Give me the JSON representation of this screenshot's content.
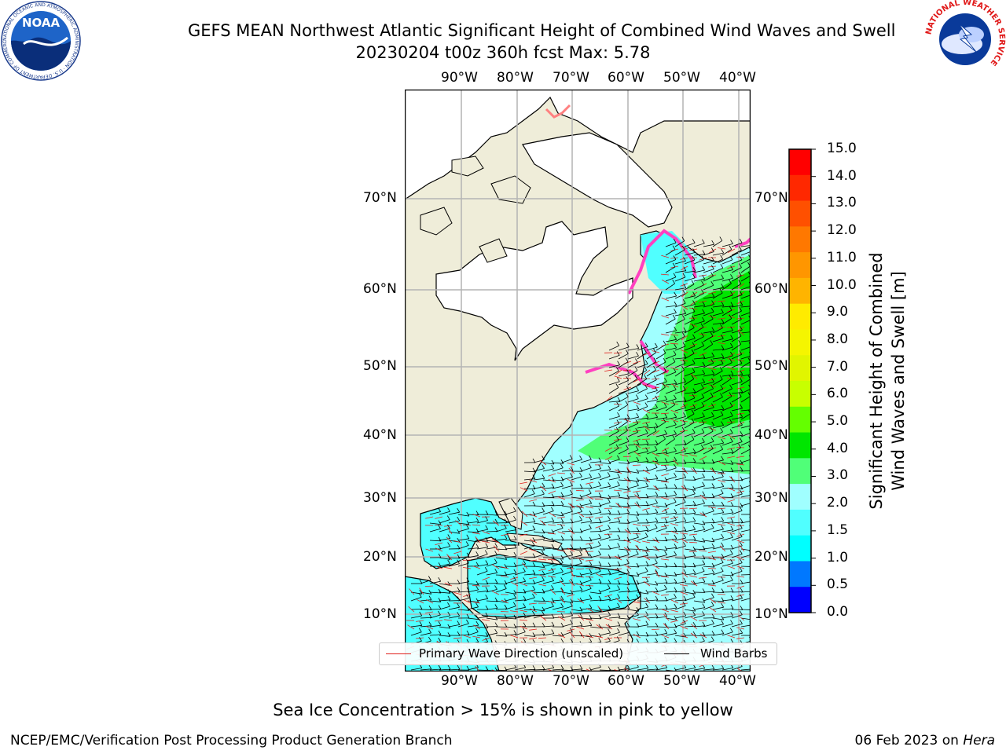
{
  "title": {
    "line1": "GEFS MEAN Northwest Atlantic Significant Height of Combined Wind Waves and Swell",
    "line2": "20230204 t00z 360h fcst   Max: 5.78"
  },
  "map": {
    "lon_labels": [
      "90°W",
      "80°W",
      "70°W",
      "60°W",
      "50°W",
      "40°W"
    ],
    "lat_labels": [
      "70°N",
      "60°N",
      "50°N",
      "40°N",
      "30°N",
      "20°N",
      "10°N"
    ],
    "colors": {
      "land": "#efedd9",
      "ice_free_land": "#ffffff",
      "grid": "#b4b4b4",
      "coast": "#000000",
      "wave_arrow": "#e0201c",
      "wind_barb": "#000000"
    }
  },
  "colorbar": {
    "label_line1": "Significant Height of Combined",
    "label_line2": "Wind Waves and Swell [m]",
    "ticks": [
      "15.0",
      "14.0",
      "13.0",
      "12.0",
      "11.0",
      "10.0",
      "9.0",
      "8.0",
      "7.0",
      "6.0",
      "5.0",
      "4.0",
      "3.0",
      "2.0",
      "1.5",
      "1.0",
      "0.5",
      "0.0"
    ],
    "colors_top_to_bottom": [
      "#ff0000",
      "#ff2800",
      "#ff5000",
      "#ff7800",
      "#ff9600",
      "#ffb400",
      "#ffeb00",
      "#f5f500",
      "#e1f500",
      "#c8ff00",
      "#64ff00",
      "#00e600",
      "#50ff78",
      "#a0ffff",
      "#50ffff",
      "#00ffff",
      "#0078ff",
      "#0000ff"
    ]
  },
  "legend": {
    "wave_label": "Primary Wave Direction (unscaled)",
    "wind_label": "Wind Barbs"
  },
  "caption": "Sea Ice Concentration > 15% is shown in pink to yellow",
  "footer": {
    "left": "NCEP/EMC/Verification Post Processing Product Generation Branch",
    "right_date": "06 Feb 2023 on ",
    "right_host": "Hera"
  },
  "logos": {
    "noaa_text": "NOAA",
    "noaa_ring_text": "NATIONAL OCEANIC AND ATMOSPHERIC ADMINISTRATION · U.S. DEPARTMENT OF COMMERCE",
    "nws_ring_text": "NATIONAL WEATHER SERVICE"
  }
}
